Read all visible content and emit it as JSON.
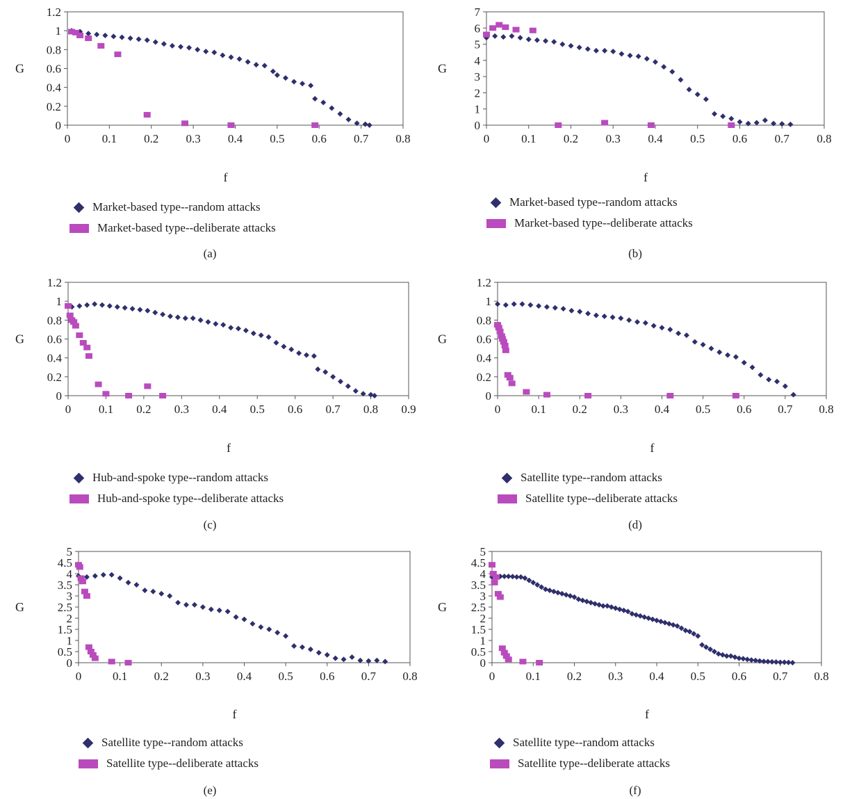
{
  "colors": {
    "random": "#2e2f6b",
    "deliberate": "#b94bbd",
    "axis": "#555555"
  },
  "chart_data": [
    {
      "id": "a",
      "type": "scatter",
      "caption": "(a)",
      "xlabel": "f",
      "ylabel": "G",
      "xlim": [
        0,
        0.8
      ],
      "xticks": [
        "0",
        "0.1",
        "0.2",
        "0.3",
        "0.4",
        "0.5",
        "0.6",
        "0.7",
        "0.8"
      ],
      "ylim": [
        0,
        1.2
      ],
      "yticks": [
        "0",
        "0.2",
        "0.4",
        "0.6",
        "0.8",
        "1",
        "1.2"
      ],
      "series": [
        {
          "name": "Market-based type--random attacks",
          "marker": "diamond",
          "x": [
            0.01,
            0.03,
            0.05,
            0.07,
            0.09,
            0.11,
            0.13,
            0.15,
            0.17,
            0.19,
            0.21,
            0.23,
            0.25,
            0.27,
            0.29,
            0.31,
            0.33,
            0.35,
            0.37,
            0.39,
            0.41,
            0.43,
            0.45,
            0.47,
            0.49,
            0.5,
            0.52,
            0.54,
            0.56,
            0.58,
            0.59,
            0.61,
            0.63,
            0.65,
            0.67,
            0.69,
            0.71,
            0.72
          ],
          "y": [
            1.0,
            0.99,
            0.97,
            0.96,
            0.95,
            0.94,
            0.93,
            0.92,
            0.91,
            0.9,
            0.88,
            0.86,
            0.84,
            0.83,
            0.82,
            0.8,
            0.78,
            0.77,
            0.74,
            0.72,
            0.7,
            0.67,
            0.64,
            0.63,
            0.57,
            0.53,
            0.5,
            0.46,
            0.44,
            0.42,
            0.28,
            0.24,
            0.18,
            0.12,
            0.06,
            0.02,
            0.01,
            0.0
          ]
        },
        {
          "name": "Market-based type--deliberate attacks",
          "marker": "square",
          "x": [
            0.01,
            0.02,
            0.03,
            0.05,
            0.08,
            0.12,
            0.19,
            0.28,
            0.39,
            0.59
          ],
          "y": [
            0.99,
            0.98,
            0.95,
            0.92,
            0.84,
            0.75,
            0.11,
            0.02,
            0.0,
            0.0
          ]
        }
      ]
    },
    {
      "id": "b",
      "type": "scatter",
      "caption": "(b)",
      "xlabel": "f",
      "ylabel": "G",
      "xlim": [
        0,
        0.8
      ],
      "xticks": [
        "0",
        "0.1",
        "0.2",
        "0.3",
        "0.4",
        "0.5",
        "0.6",
        "0.7",
        "0.8"
      ],
      "ylim": [
        0,
        7
      ],
      "yticks": [
        "0",
        "1",
        "2",
        "3",
        "4",
        "5",
        "6",
        "7"
      ],
      "series": [
        {
          "name": "Market-based type--random attacks",
          "marker": "diamond",
          "x": [
            0.0,
            0.02,
            0.04,
            0.06,
            0.08,
            0.1,
            0.12,
            0.14,
            0.16,
            0.18,
            0.2,
            0.22,
            0.24,
            0.26,
            0.28,
            0.3,
            0.32,
            0.34,
            0.36,
            0.38,
            0.4,
            0.42,
            0.44,
            0.46,
            0.48,
            0.5,
            0.52,
            0.54,
            0.56,
            0.58,
            0.6,
            0.62,
            0.64,
            0.66,
            0.68,
            0.7,
            0.72
          ],
          "y": [
            5.4,
            5.5,
            5.45,
            5.5,
            5.4,
            5.3,
            5.25,
            5.2,
            5.15,
            5.0,
            4.9,
            4.8,
            4.7,
            4.6,
            4.6,
            4.55,
            4.4,
            4.3,
            4.25,
            4.1,
            3.9,
            3.6,
            3.3,
            2.8,
            2.2,
            1.9,
            1.6,
            0.7,
            0.55,
            0.4,
            0.2,
            0.1,
            0.15,
            0.3,
            0.1,
            0.08,
            0.05
          ]
        },
        {
          "name": "Market-based type--deliberate attacks",
          "marker": "square",
          "x": [
            0.0,
            0.015,
            0.03,
            0.045,
            0.07,
            0.11,
            0.17,
            0.28,
            0.39,
            0.58
          ],
          "y": [
            5.6,
            6.0,
            6.2,
            6.05,
            5.9,
            5.85,
            0.0,
            0.15,
            0.0,
            0.0
          ]
        }
      ]
    },
    {
      "id": "c",
      "type": "scatter",
      "caption": "(c)",
      "xlabel": "f",
      "ylabel": "G",
      "xlim": [
        0,
        0.9
      ],
      "xticks": [
        "0",
        "0.1",
        "0.2",
        "0.3",
        "0.4",
        "0.5",
        "0.6",
        "0.7",
        "0.8",
        "0.9"
      ],
      "ylim": [
        0,
        1.2
      ],
      "yticks": [
        "0",
        "0.2",
        "0.4",
        "0.6",
        "0.8",
        "1",
        "1.2"
      ],
      "series": [
        {
          "name": "Hub-and-spoke type--random attacks",
          "marker": "diamond",
          "x": [
            0.01,
            0.03,
            0.05,
            0.07,
            0.09,
            0.11,
            0.13,
            0.15,
            0.17,
            0.19,
            0.21,
            0.23,
            0.25,
            0.27,
            0.29,
            0.31,
            0.33,
            0.35,
            0.37,
            0.39,
            0.41,
            0.43,
            0.45,
            0.47,
            0.49,
            0.51,
            0.53,
            0.55,
            0.57,
            0.59,
            0.61,
            0.63,
            0.65,
            0.66,
            0.68,
            0.7,
            0.72,
            0.74,
            0.76,
            0.78,
            0.8,
            0.81
          ],
          "y": [
            0.94,
            0.95,
            0.96,
            0.97,
            0.96,
            0.95,
            0.94,
            0.93,
            0.92,
            0.91,
            0.9,
            0.88,
            0.86,
            0.84,
            0.83,
            0.82,
            0.82,
            0.8,
            0.78,
            0.76,
            0.75,
            0.72,
            0.71,
            0.69,
            0.66,
            0.64,
            0.62,
            0.56,
            0.52,
            0.49,
            0.45,
            0.43,
            0.42,
            0.28,
            0.25,
            0.2,
            0.15,
            0.1,
            0.05,
            0.02,
            0.01,
            0.0
          ]
        },
        {
          "name": "Hub-and-spoke type--deliberate attacks",
          "marker": "square",
          "x": [
            0.0,
            0.005,
            0.01,
            0.015,
            0.02,
            0.03,
            0.04,
            0.05,
            0.055,
            0.08,
            0.1,
            0.16,
            0.21,
            0.25
          ],
          "y": [
            0.95,
            0.85,
            0.8,
            0.78,
            0.74,
            0.64,
            0.56,
            0.51,
            0.42,
            0.12,
            0.02,
            0.0,
            0.1,
            0.0
          ]
        }
      ]
    },
    {
      "id": "d",
      "type": "scatter",
      "caption": "(d)",
      "xlabel": "f",
      "ylabel": "G",
      "xlim": [
        0,
        0.8
      ],
      "xticks": [
        "0",
        "0.1",
        "0.2",
        "0.3",
        "0.4",
        "0.5",
        "0.6",
        "0.7",
        "0.8"
      ],
      "ylim": [
        0,
        1.2
      ],
      "yticks": [
        "0",
        "0.2",
        "0.4",
        "0.6",
        "0.8",
        "1",
        "1.2"
      ],
      "series": [
        {
          "name": "Satellite type--random attacks",
          "marker": "diamond",
          "x": [
            0.0,
            0.02,
            0.04,
            0.06,
            0.08,
            0.1,
            0.12,
            0.14,
            0.16,
            0.18,
            0.2,
            0.22,
            0.24,
            0.26,
            0.28,
            0.3,
            0.32,
            0.34,
            0.36,
            0.38,
            0.4,
            0.42,
            0.44,
            0.46,
            0.48,
            0.5,
            0.52,
            0.54,
            0.56,
            0.58,
            0.6,
            0.62,
            0.64,
            0.66,
            0.68,
            0.7,
            0.72
          ],
          "y": [
            0.97,
            0.96,
            0.97,
            0.97,
            0.96,
            0.95,
            0.94,
            0.93,
            0.92,
            0.9,
            0.89,
            0.87,
            0.85,
            0.84,
            0.83,
            0.82,
            0.8,
            0.78,
            0.77,
            0.74,
            0.72,
            0.7,
            0.66,
            0.64,
            0.57,
            0.54,
            0.5,
            0.46,
            0.43,
            0.41,
            0.35,
            0.3,
            0.22,
            0.17,
            0.15,
            0.1,
            0.01
          ]
        },
        {
          "name": "Satellite type--deliberate attacks",
          "marker": "square",
          "x": [
            0.0,
            0.003,
            0.006,
            0.01,
            0.012,
            0.015,
            0.018,
            0.02,
            0.025,
            0.03,
            0.035,
            0.07,
            0.12,
            0.22,
            0.42,
            0.58
          ],
          "y": [
            0.75,
            0.72,
            0.68,
            0.63,
            0.6,
            0.57,
            0.53,
            0.48,
            0.22,
            0.19,
            0.13,
            0.04,
            0.01,
            0.0,
            0.0,
            0.0
          ]
        }
      ]
    },
    {
      "id": "e",
      "type": "scatter",
      "caption": "(e)",
      "xlabel": "f",
      "ylabel": "G",
      "xlim": [
        0,
        0.8
      ],
      "xticks": [
        "0",
        "0.1",
        "0.2",
        "0.3",
        "0.4",
        "0.5",
        "0.6",
        "0.7",
        "0.8"
      ],
      "ylim": [
        0,
        5
      ],
      "yticks": [
        "0",
        "0.5",
        "1",
        "1.5",
        "2",
        "2.5",
        "3",
        "3.5",
        "4",
        "4.5",
        "5"
      ],
      "series": [
        {
          "name": "Satellite type--random attacks",
          "marker": "diamond",
          "x": [
            0.0,
            0.02,
            0.04,
            0.06,
            0.08,
            0.1,
            0.12,
            0.14,
            0.16,
            0.18,
            0.2,
            0.22,
            0.24,
            0.26,
            0.28,
            0.3,
            0.32,
            0.34,
            0.36,
            0.38,
            0.4,
            0.42,
            0.44,
            0.46,
            0.48,
            0.5,
            0.52,
            0.54,
            0.56,
            0.58,
            0.6,
            0.62,
            0.64,
            0.66,
            0.68,
            0.7,
            0.72,
            0.74
          ],
          "y": [
            3.9,
            3.85,
            3.9,
            3.95,
            3.95,
            3.8,
            3.6,
            3.5,
            3.25,
            3.2,
            3.1,
            3.0,
            2.7,
            2.6,
            2.6,
            2.5,
            2.4,
            2.35,
            2.3,
            2.05,
            1.95,
            1.75,
            1.6,
            1.5,
            1.35,
            1.2,
            0.75,
            0.7,
            0.6,
            0.45,
            0.35,
            0.2,
            0.15,
            0.25,
            0.1,
            0.08,
            0.1,
            0.05
          ]
        },
        {
          "name": "Satellite type--deliberate attacks",
          "marker": "square",
          "x": [
            0.0,
            0.003,
            0.006,
            0.01,
            0.015,
            0.02,
            0.025,
            0.03,
            0.035,
            0.04,
            0.08,
            0.12
          ],
          "y": [
            4.4,
            4.3,
            3.8,
            3.65,
            3.2,
            3.0,
            0.7,
            0.5,
            0.35,
            0.2,
            0.05,
            0.0
          ]
        }
      ]
    },
    {
      "id": "f",
      "type": "scatter",
      "caption": "(f)",
      "xlabel": "f",
      "ylabel": "G",
      "xlim": [
        0,
        0.8
      ],
      "xticks": [
        "0",
        "0.1",
        "0.2",
        "0.3",
        "0.4",
        "0.5",
        "0.6",
        "0.7",
        "0.8"
      ],
      "ylim": [
        0,
        5
      ],
      "yticks": [
        "0",
        "0.5",
        "1",
        "1.5",
        "2",
        "2.5",
        "3",
        "3.5",
        "4",
        "4.5",
        "5"
      ],
      "series": [
        {
          "name": "Satellite type--random attacks",
          "marker": "diamond",
          "x": [
            0.0,
            0.01,
            0.02,
            0.03,
            0.04,
            0.05,
            0.06,
            0.07,
            0.08,
            0.09,
            0.1,
            0.11,
            0.12,
            0.13,
            0.14,
            0.15,
            0.16,
            0.17,
            0.18,
            0.19,
            0.2,
            0.21,
            0.22,
            0.23,
            0.24,
            0.25,
            0.26,
            0.27,
            0.28,
            0.29,
            0.3,
            0.31,
            0.32,
            0.33,
            0.34,
            0.35,
            0.36,
            0.37,
            0.38,
            0.39,
            0.4,
            0.41,
            0.42,
            0.43,
            0.44,
            0.45,
            0.46,
            0.47,
            0.48,
            0.49,
            0.5,
            0.51,
            0.52,
            0.53,
            0.54,
            0.55,
            0.56,
            0.57,
            0.58,
            0.59,
            0.6,
            0.61,
            0.62,
            0.63,
            0.64,
            0.65,
            0.66,
            0.67,
            0.68,
            0.69,
            0.7,
            0.71,
            0.72,
            0.73
          ],
          "y": [
            3.85,
            3.88,
            3.88,
            3.88,
            3.88,
            3.87,
            3.85,
            3.85,
            3.8,
            3.7,
            3.6,
            3.5,
            3.4,
            3.3,
            3.25,
            3.2,
            3.15,
            3.1,
            3.05,
            3.0,
            2.95,
            2.85,
            2.8,
            2.75,
            2.7,
            2.65,
            2.6,
            2.55,
            2.55,
            2.5,
            2.45,
            2.4,
            2.35,
            2.3,
            2.2,
            2.15,
            2.1,
            2.05,
            2.0,
            1.95,
            1.9,
            1.85,
            1.8,
            1.75,
            1.7,
            1.65,
            1.55,
            1.45,
            1.4,
            1.3,
            1.2,
            0.8,
            0.7,
            0.6,
            0.5,
            0.4,
            0.35,
            0.3,
            0.3,
            0.25,
            0.2,
            0.18,
            0.15,
            0.12,
            0.1,
            0.08,
            0.06,
            0.05,
            0.04,
            0.03,
            0.02,
            0.02,
            0.01,
            0.0
          ]
        },
        {
          "name": "Satellite type--deliberate attacks",
          "marker": "square",
          "x": [
            0.0,
            0.003,
            0.006,
            0.01,
            0.015,
            0.02,
            0.025,
            0.03,
            0.035,
            0.04,
            0.075,
            0.115
          ],
          "y": [
            4.4,
            4.0,
            3.6,
            3.85,
            3.1,
            2.95,
            0.65,
            0.45,
            0.3,
            0.15,
            0.05,
            0.0
          ]
        }
      ]
    }
  ]
}
